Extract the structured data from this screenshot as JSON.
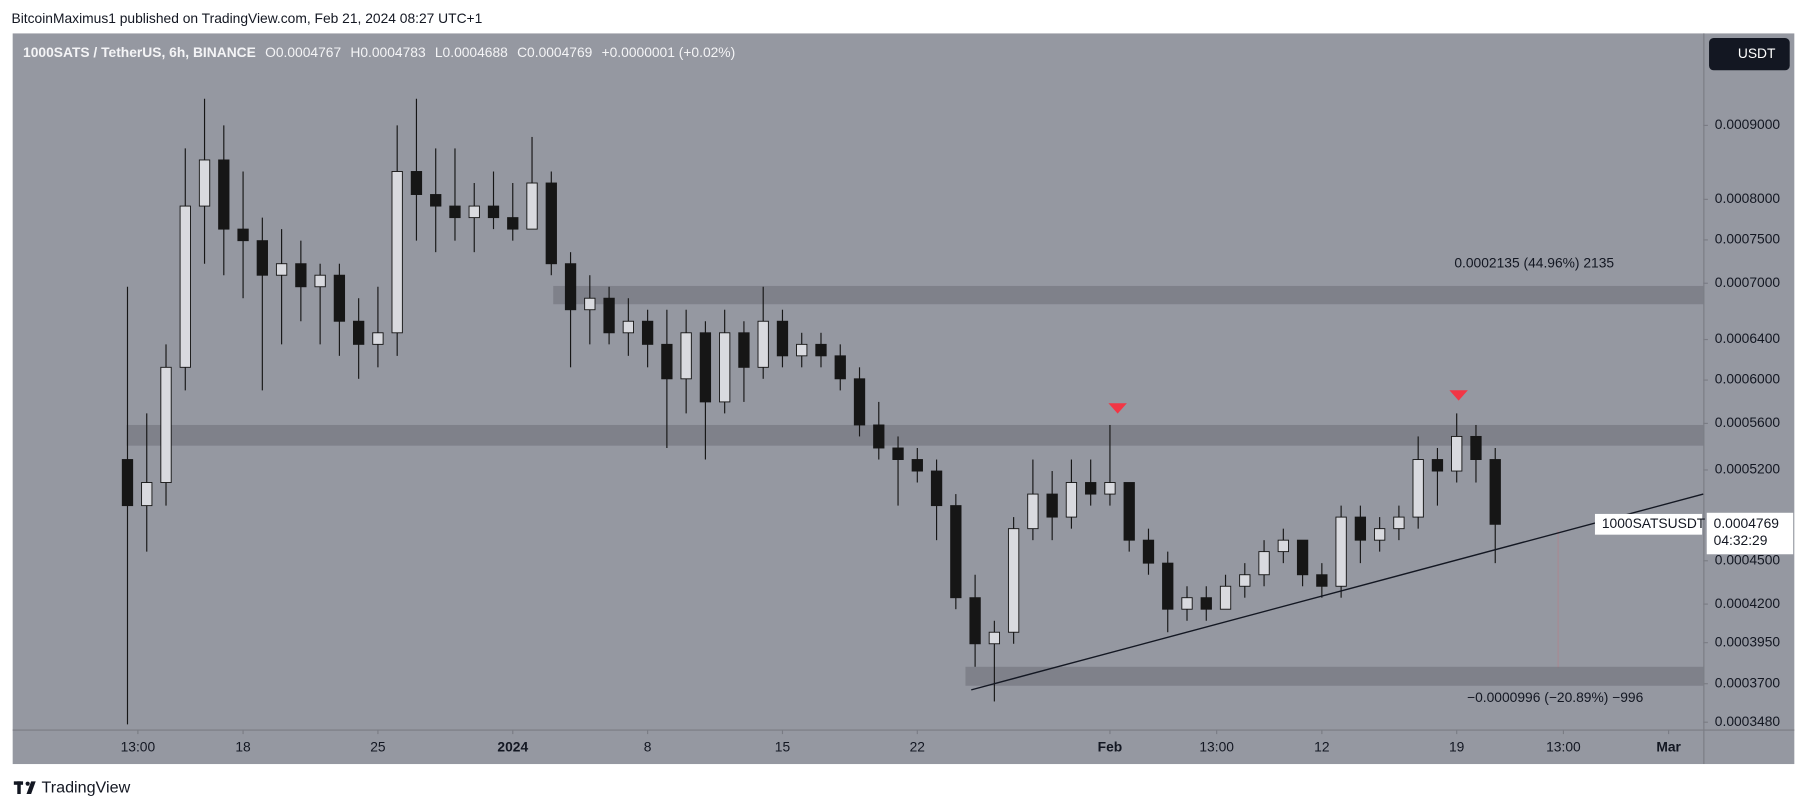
{
  "publisher_line": "BitcoinMaximus1 published on TradingView.com, Feb 21, 2024 08:27 UTC+1",
  "footer": "TradingView",
  "chart_data": {
    "type": "candlestick",
    "symbol": "1000SATS / TetherUS, 6h, BINANCE",
    "ohlc": [
      {
        "label": "O",
        "value": 0.0004767
      },
      {
        "label": "H",
        "value": 0.0004783
      },
      {
        "label": "L",
        "value": 0.0004688
      },
      {
        "label": "C",
        "value": 0.0004769
      }
    ],
    "change": "+0.0000001 (+0.02%)",
    "currency_button": "USDT",
    "log": true,
    "grid": false,
    "up_color": "#d9dadf",
    "down_color": "#161616",
    "xlim": [
      -25.9,
      61.8
    ],
    "xticks": [
      {
        "value": -19.46,
        "label": "13:00"
      },
      {
        "value": -14,
        "label": "18"
      },
      {
        "value": -7,
        "label": "25"
      },
      {
        "value": 0,
        "label": "2024"
      },
      {
        "value": 7,
        "label": "8"
      },
      {
        "value": 14,
        "label": "15"
      },
      {
        "value": 21,
        "label": "22"
      },
      {
        "value": 31,
        "label": "Feb"
      },
      {
        "value": 36.54,
        "label": "13:00"
      },
      {
        "value": 42,
        "label": "12"
      },
      {
        "value": 49,
        "label": "19"
      },
      {
        "value": 54.54,
        "label": "13:00"
      },
      {
        "value": 60,
        "label": "Mar"
      }
    ],
    "ylim": [
      0.000344,
      0.00104
    ],
    "yticks": [
      {
        "value": 0.0009,
        "label": "0.0009000"
      },
      {
        "value": 0.0008,
        "label": "0.0008000"
      },
      {
        "value": 0.00075,
        "label": "0.0007500"
      },
      {
        "value": 0.0007,
        "label": "0.0007000"
      },
      {
        "value": 0.00064,
        "label": "0.0006400"
      },
      {
        "value": 0.0006,
        "label": "0.0006000"
      },
      {
        "value": 0.00056,
        "label": "0.0005600"
      },
      {
        "value": 0.00052,
        "label": "0.0005200"
      },
      {
        "value": 0.00045,
        "label": "0.0004500"
      },
      {
        "value": 0.00042,
        "label": "0.0004200"
      },
      {
        "value": 0.000395,
        "label": "0.0003950"
      },
      {
        "value": 0.00037,
        "label": "0.0003700"
      },
      {
        "value": 0.000348,
        "label": "0.0003480"
      }
    ],
    "x": [
      -20,
      -19,
      -18,
      -17,
      -16,
      -15,
      -14,
      -13,
      -12,
      -11,
      -10,
      -9,
      -8,
      -7,
      -6,
      -5,
      -4,
      -3,
      -2,
      -1,
      0,
      1,
      2,
      3,
      4,
      5,
      6,
      7,
      8,
      9,
      10,
      11,
      12,
      13,
      14,
      15,
      16,
      17,
      18,
      19,
      20,
      21,
      22,
      23,
      24,
      25,
      26,
      27,
      28,
      29,
      30,
      31,
      32,
      33,
      34,
      35,
      36,
      37,
      38,
      39,
      40,
      41,
      42,
      43,
      44,
      45,
      46,
      47,
      48,
      49,
      50,
      51
    ],
    "open": [
      0.0005287,
      0.0004913,
      0.0005097,
      0.0006123,
      0.0007915,
      0.0008518,
      0.000763,
      0.0007491,
      0.000709,
      0.0007221,
      0.0006961,
      0.000709,
      0.0006589,
      0.0006351,
      0.0006469,
      0.0008363,
      0.0008062,
      0.0007915,
      0.0007771,
      0.0007915,
      0.0007771,
      0.000763,
      0.0008211,
      0.0007221,
      0.0006711,
      0.0006835,
      0.0006469,
      0.0006589,
      0.0006351,
      0.0006012,
      0.0006469,
      0.0005795,
      0.0006469,
      0.0006123,
      0.0006589,
      0.0006236,
      0.0006351,
      0.0006236,
      0.0006012,
      0.0005586,
      0.0005385,
      0.0005287,
      0.0005191,
      0.0004913,
      0.0004243,
      0.0003943,
      0.0004016,
      0.0004736,
      0.0005004,
      0.0004824,
      0.0005097,
      0.0005004,
      0.0005097,
      0.000465,
      0.0004483,
      0.0004166,
      0.0004243,
      0.0004166,
      0.0004321,
      0.0004401,
      0.0004566,
      0.000465,
      0.0004401,
      0.0004321,
      0.0004824,
      0.000465,
      0.0004736,
      0.0004824,
      0.0005287,
      0.0005191,
      0.0005485,
      0.0005287
    ],
    "high": [
      0.0006961,
      0.000569,
      0.0006351,
      0.0008676,
      0.000939,
      0.0009,
      0.0008363,
      0.0007771,
      0.000763,
      0.0007491,
      0.0007221,
      0.0007221,
      0.0006835,
      0.0006961,
      0.0009,
      0.000939,
      0.0008676,
      0.0008676,
      0.0008211,
      0.0008363,
      0.0008211,
      0.0008836,
      0.0008363,
      0.0007355,
      0.000709,
      0.0006961,
      0.0006835,
      0.0006711,
      0.0006711,
      0.0006711,
      0.0006589,
      0.0006711,
      0.0006589,
      0.0006961,
      0.0006711,
      0.0006469,
      0.0006469,
      0.0006351,
      0.0006123,
      0.0005795,
      0.0005485,
      0.0005385,
      0.0005287,
      0.0005004,
      0.0004401,
      0.000409,
      0.0004824,
      0.0005287,
      0.0005191,
      0.0005287,
      0.0005287,
      0.0005586,
      0.0005097,
      0.0004736,
      0.0004566,
      0.0004321,
      0.0004321,
      0.0004401,
      0.0004483,
      0.000465,
      0.0004736,
      0.000465,
      0.0004483,
      0.0004913,
      0.0004913,
      0.0004824,
      0.0004913,
      0.0005485,
      0.0005385,
      0.000569,
      0.0005586,
      0.0005385
    ],
    "low": [
      0.0003468,
      0.0004566,
      0.0004913,
      0.0005902,
      0.0007221,
      0.000709,
      0.0006835,
      0.0005902,
      0.0006351,
      0.0006589,
      0.0006351,
      0.0006236,
      0.0006012,
      0.0006123,
      0.0006236,
      0.0007491,
      0.0007355,
      0.0007491,
      0.0007355,
      0.000763,
      0.0007491,
      0.000763,
      0.000709,
      0.0006123,
      0.0006351,
      0.0006351,
      0.0006236,
      0.0006123,
      0.0005385,
      0.000569,
      0.0005287,
      0.000569,
      0.0005795,
      0.0006012,
      0.0006123,
      0.0006123,
      0.0006123,
      0.0005902,
      0.0005485,
      0.0005287,
      0.0004913,
      0.0005097,
      0.000465,
      0.0004166,
      0.0003801,
      0.0003597,
      0.0003943,
      0.000465,
      0.000465,
      0.0004736,
      0.0004913,
      0.0004913,
      0.0004566,
      0.0004401,
      0.0004016,
      0.000409,
      0.000409,
      0.0004166,
      0.0004243,
      0.0004321,
      0.0004483,
      0.0004321,
      0.0004243,
      0.0004243,
      0.0004483,
      0.0004566,
      0.000465,
      0.0004736,
      0.0004913,
      0.0005097,
      0.0005097,
      0.0004483
    ],
    "close": [
      0.0004913,
      0.0005097,
      0.0006123,
      0.0007915,
      0.0008518,
      0.000763,
      0.0007491,
      0.000709,
      0.0007221,
      0.0006961,
      0.000709,
      0.0006589,
      0.0006351,
      0.0006469,
      0.0008363,
      0.0008062,
      0.0007915,
      0.0007771,
      0.0007915,
      0.0007771,
      0.000763,
      0.0008211,
      0.0007221,
      0.0006711,
      0.0006835,
      0.0006469,
      0.0006589,
      0.0006351,
      0.0006012,
      0.0006469,
      0.0005795,
      0.0006469,
      0.0006123,
      0.0006589,
      0.0006236,
      0.0006351,
      0.0006236,
      0.0006012,
      0.0005586,
      0.0005385,
      0.0005287,
      0.0005191,
      0.0004913,
      0.0004243,
      0.0003943,
      0.0004016,
      0.0004736,
      0.0005004,
      0.0004824,
      0.0005097,
      0.0005004,
      0.0005097,
      0.000465,
      0.0004483,
      0.0004166,
      0.0004243,
      0.0004166,
      0.0004321,
      0.0004401,
      0.0004566,
      0.000465,
      0.0004401,
      0.0004321,
      0.0004824,
      0.000465,
      0.0004736,
      0.0004824,
      0.0005287,
      0.0005191,
      0.0005485,
      0.0005287,
      0.0004769
    ],
    "zones": [
      {
        "from": 2.1,
        "low": 0.000677,
        "high": 0.000697
      },
      {
        "from": -20.05,
        "low": 0.0005405,
        "high": 0.0005586
      },
      {
        "from": 23.5,
        "low": 0.0003688,
        "high": 0.0003801
      }
    ],
    "trend_line": {
      "x": [
        23.8,
        61.8
      ],
      "y": [
        0.0003664,
        0.0005004
      ]
    },
    "markers": {
      "color": "#f23645",
      "x": [
        31.4,
        49.1
      ],
      "y": [
        0.000573,
        0.000585
      ]
    },
    "measure_labels": [
      "0.0002135 (44.96%) 2135",
      "−0.0000996 (−20.89%) −996"
    ],
    "last_price": {
      "symbol": "1000SATSUSDT",
      "price": 0.0004769,
      "countdown": "04:32:29"
    }
  }
}
